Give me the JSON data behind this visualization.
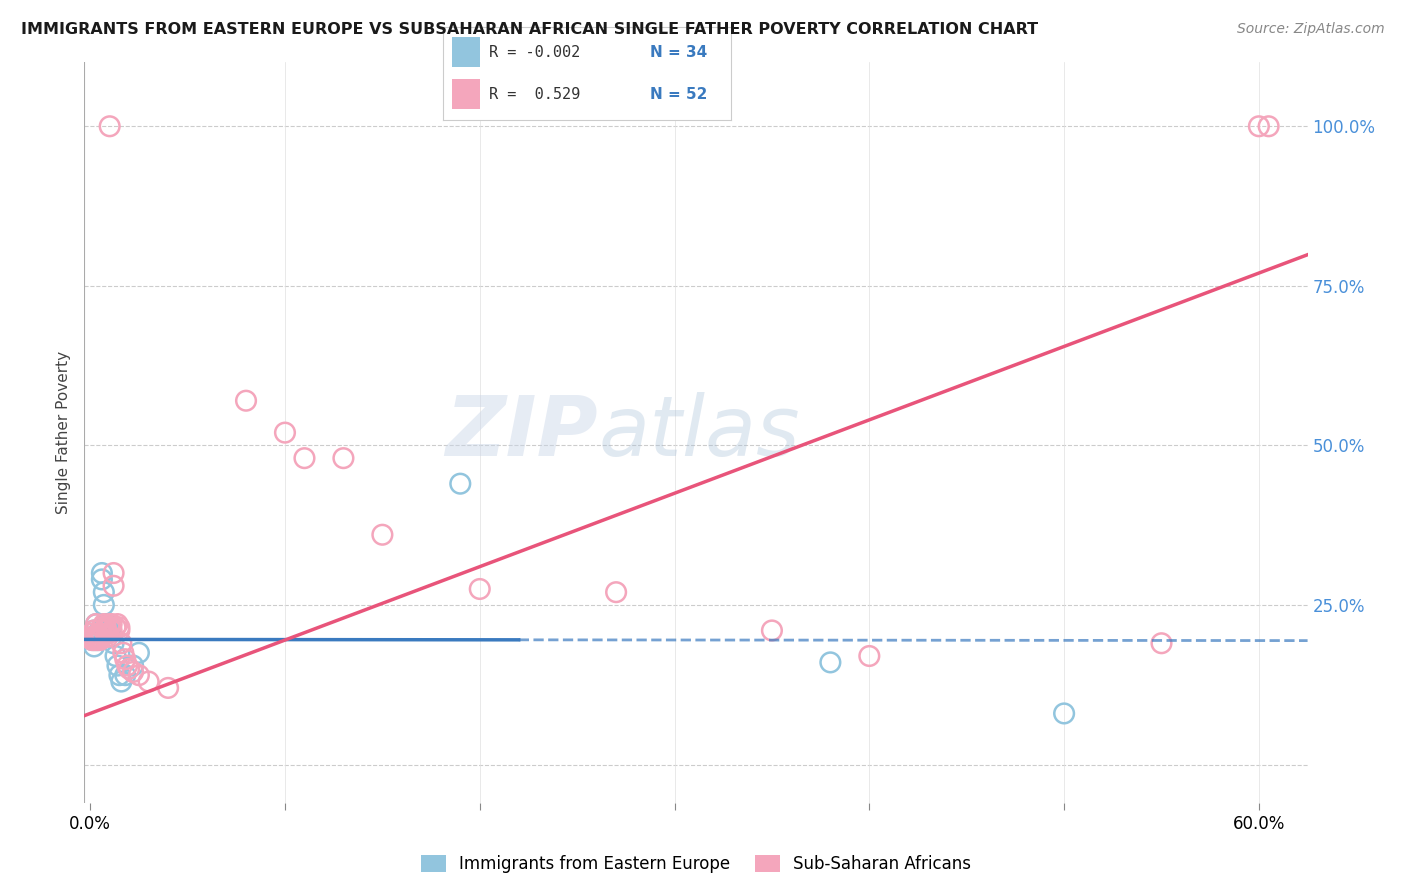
{
  "title": "IMMIGRANTS FROM EASTERN EUROPE VS SUBSAHARAN AFRICAN SINGLE FATHER POVERTY CORRELATION CHART",
  "source": "Source: ZipAtlas.com",
  "ylabel": "Single Father Poverty",
  "ylim": [
    -0.06,
    1.1
  ],
  "xlim": [
    -0.003,
    0.625
  ],
  "yticks": [
    0.0,
    0.25,
    0.5,
    0.75,
    1.0
  ],
  "ytick_labels": [
    "",
    "25.0%",
    "50.0%",
    "75.0%",
    "100.0%"
  ],
  "legend_r_blue": "-0.002",
  "legend_n_blue": "34",
  "legend_r_pink": "0.529",
  "legend_n_pink": "52",
  "legend_label_blue": "Immigrants from Eastern Europe",
  "legend_label_pink": "Sub-Saharan Africans",
  "blue_color": "#92c5de",
  "pink_color": "#f4a6bc",
  "blue_line_color": "#3a7abf",
  "pink_line_color": "#e8547a",
  "blue_scatter": [
    [
      0.001,
      0.2
    ],
    [
      0.001,
      0.195
    ],
    [
      0.002,
      0.21
    ],
    [
      0.002,
      0.195
    ],
    [
      0.002,
      0.185
    ],
    [
      0.003,
      0.2
    ],
    [
      0.003,
      0.22
    ],
    [
      0.003,
      0.195
    ],
    [
      0.004,
      0.2
    ],
    [
      0.004,
      0.195
    ],
    [
      0.005,
      0.205
    ],
    [
      0.005,
      0.21
    ],
    [
      0.006,
      0.3
    ],
    [
      0.006,
      0.29
    ],
    [
      0.007,
      0.27
    ],
    [
      0.007,
      0.25
    ],
    [
      0.008,
      0.22
    ],
    [
      0.008,
      0.21
    ],
    [
      0.009,
      0.22
    ],
    [
      0.009,
      0.215
    ],
    [
      0.01,
      0.21
    ],
    [
      0.01,
      0.21
    ],
    [
      0.011,
      0.2
    ],
    [
      0.012,
      0.19
    ],
    [
      0.013,
      0.17
    ],
    [
      0.014,
      0.155
    ],
    [
      0.015,
      0.14
    ],
    [
      0.016,
      0.13
    ],
    [
      0.018,
      0.14
    ],
    [
      0.022,
      0.155
    ],
    [
      0.025,
      0.175
    ],
    [
      0.19,
      0.44
    ],
    [
      0.38,
      0.16
    ],
    [
      0.5,
      0.08
    ]
  ],
  "pink_scatter": [
    [
      0.001,
      0.195
    ],
    [
      0.001,
      0.2
    ],
    [
      0.001,
      0.205
    ],
    [
      0.002,
      0.195
    ],
    [
      0.002,
      0.2
    ],
    [
      0.002,
      0.21
    ],
    [
      0.003,
      0.195
    ],
    [
      0.003,
      0.2
    ],
    [
      0.003,
      0.22
    ],
    [
      0.004,
      0.195
    ],
    [
      0.004,
      0.205
    ],
    [
      0.005,
      0.195
    ],
    [
      0.005,
      0.2
    ],
    [
      0.006,
      0.205
    ],
    [
      0.006,
      0.215
    ],
    [
      0.007,
      0.21
    ],
    [
      0.007,
      0.22
    ],
    [
      0.008,
      0.215
    ],
    [
      0.009,
      0.2
    ],
    [
      0.009,
      0.205
    ],
    [
      0.01,
      0.22
    ],
    [
      0.01,
      0.215
    ],
    [
      0.011,
      0.21
    ],
    [
      0.011,
      0.22
    ],
    [
      0.012,
      0.28
    ],
    [
      0.012,
      0.3
    ],
    [
      0.013,
      0.215
    ],
    [
      0.014,
      0.22
    ],
    [
      0.015,
      0.215
    ],
    [
      0.015,
      0.21
    ],
    [
      0.016,
      0.19
    ],
    [
      0.017,
      0.175
    ],
    [
      0.018,
      0.165
    ],
    [
      0.019,
      0.155
    ],
    [
      0.02,
      0.15
    ],
    [
      0.022,
      0.145
    ],
    [
      0.025,
      0.14
    ],
    [
      0.03,
      0.13
    ],
    [
      0.04,
      0.12
    ],
    [
      0.08,
      0.57
    ],
    [
      0.1,
      0.52
    ],
    [
      0.11,
      0.48
    ],
    [
      0.13,
      0.48
    ],
    [
      0.15,
      0.36
    ],
    [
      0.2,
      0.275
    ],
    [
      0.27,
      0.27
    ],
    [
      0.35,
      0.21
    ],
    [
      0.4,
      0.17
    ],
    [
      0.55,
      0.19
    ],
    [
      0.6,
      1.0
    ],
    [
      0.605,
      1.0
    ],
    [
      0.01,
      1.0
    ]
  ],
  "watermark": "ZIPatlas",
  "background_color": "#ffffff",
  "grid_color": "#cccccc"
}
